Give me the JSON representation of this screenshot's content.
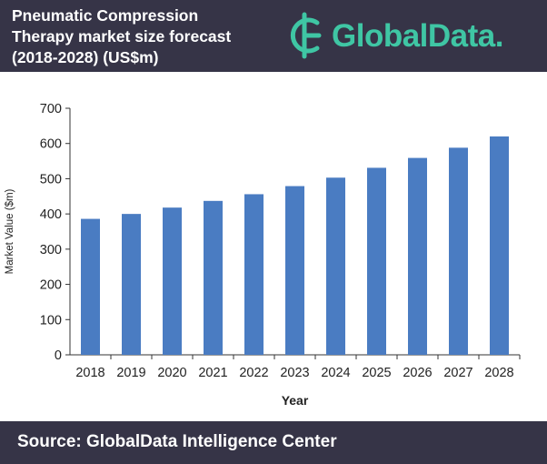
{
  "header": {
    "title_lines": [
      "Pneumatic Compression",
      "Therapy market size forecast",
      "(2018-2028) (US$m)"
    ],
    "brand": "GlobalData.",
    "logo_icon": "globaldata-logo-icon"
  },
  "footer": {
    "source": "Source: GlobalData Intelligence Center"
  },
  "colors": {
    "header_bg": "#363447",
    "bar": "#4a7cc2",
    "brand": "#3fc6a4"
  },
  "chart_data": {
    "type": "bar",
    "categories": [
      "2018",
      "2019",
      "2020",
      "2021",
      "2022",
      "2023",
      "2024",
      "2025",
      "2026",
      "2027",
      "2028"
    ],
    "values": [
      386,
      400,
      418,
      437,
      456,
      479,
      503,
      531,
      559,
      588,
      620
    ],
    "xlabel": "Year",
    "ylabel": "Market Value ($m)",
    "ylim": [
      0,
      700
    ],
    "yticks": [
      0,
      100,
      200,
      300,
      400,
      500,
      600,
      700
    ],
    "grid": false,
    "legend": false
  }
}
